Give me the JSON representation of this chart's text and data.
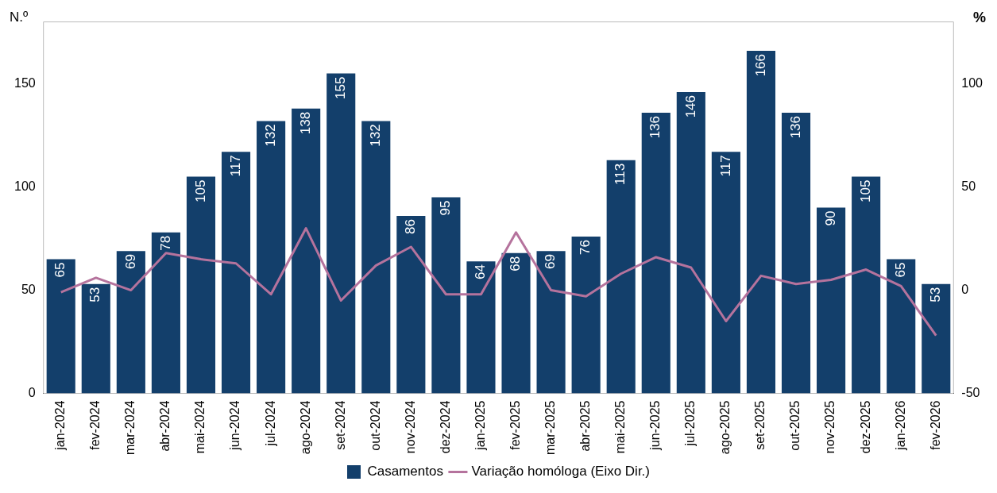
{
  "chart_data": {
    "type": "bar",
    "ylabel": "N.º",
    "y2label": "%",
    "categories": [
      "jan-2024",
      "fev-2024",
      "mar-2024",
      "abr-2024",
      "mai-2024",
      "jun-2024",
      "jul-2024",
      "ago-2024",
      "set-2024",
      "out-2024",
      "nov-2024",
      "dez-2024",
      "jan-2025",
      "fev-2025",
      "mar-2025",
      "abr-2025",
      "mai-2025",
      "jun-2025",
      "jul-2025",
      "ago-2025",
      "set-2025",
      "out-2025",
      "nov-2025",
      "dez-2025",
      "jan-2026",
      "fev-2026"
    ],
    "series": [
      {
        "name": "Casamentos",
        "type": "bar",
        "color": "#133f6b",
        "values": [
          65,
          53,
          69,
          78,
          105,
          117,
          132,
          138,
          155,
          132,
          86,
          95,
          64,
          68,
          69,
          76,
          113,
          136,
          146,
          117,
          166,
          136,
          90,
          105,
          65,
          53
        ],
        "value_labels": [
          "65",
          "53",
          "69",
          "78",
          "105",
          "117",
          "132",
          "138",
          "155",
          "132",
          "86",
          "95",
          "64",
          "68",
          "69",
          "76",
          "113",
          "136",
          "146",
          "117",
          "166",
          "136",
          "90",
          "105",
          "65",
          "53"
        ]
      },
      {
        "name": "Variação homóloga (Eixo Dir.)",
        "type": "line",
        "axis": "y2",
        "color": "#b5739d",
        "values": [
          -1,
          6,
          0,
          18,
          15,
          13,
          -2,
          30,
          -5,
          12,
          21,
          -2,
          -2,
          28,
          0,
          -3,
          8,
          16,
          11,
          -15,
          7,
          3,
          5,
          10,
          2,
          -22
        ]
      }
    ],
    "ylim": [
      0,
      180
    ],
    "yticks": [
      0,
      50,
      100,
      150
    ],
    "y2lim": [
      -50,
      130
    ],
    "y2ticks": [
      -50,
      0,
      50,
      100
    ],
    "grid": false,
    "legend": "bottom",
    "marker": "none",
    "line_style": "solid"
  }
}
